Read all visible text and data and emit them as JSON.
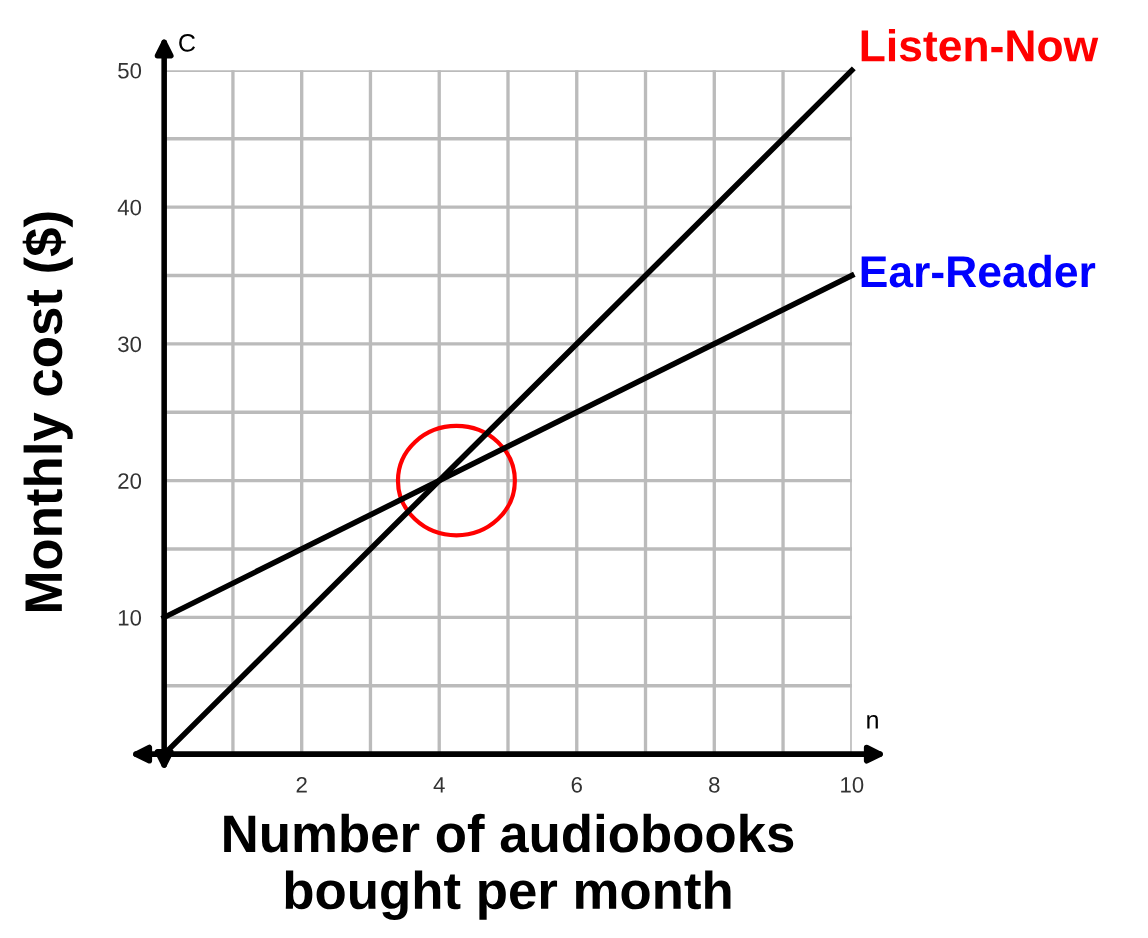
{
  "chart_data": {
    "type": "line",
    "xlabel": "Number of audiobooks\nbought per month",
    "ylabel": "Monthly cost ($)",
    "x": [
      0,
      10
    ],
    "xlim": [
      0,
      10
    ],
    "ylim": [
      0,
      50
    ],
    "xticks": [
      {
        "value": 1,
        "label": null
      },
      2,
      {
        "value": 3,
        "label": null
      },
      4,
      {
        "value": 5,
        "label": null
      },
      6,
      {
        "value": 7,
        "label": null
      },
      8,
      {
        "value": 9,
        "label": null
      },
      10
    ],
    "yticks": [
      {
        "value": 5,
        "label": null
      },
      10,
      {
        "value": 15,
        "label": null
      },
      20,
      {
        "value": 25,
        "label": null
      },
      30,
      {
        "value": 35,
        "label": null
      },
      40,
      {
        "value": 45,
        "label": null
      },
      50
    ],
    "grid": true,
    "legend": false,
    "line_style": "solid",
    "series": [
      {
        "name": "Listen-Now",
        "color": "#000000",
        "values": [
          0,
          50
        ]
      },
      {
        "name": "Ear-Reader",
        "color": "#000000",
        "values": [
          10,
          35
        ]
      }
    ],
    "annotations": [
      "C",
      "n"
    ]
  }
}
